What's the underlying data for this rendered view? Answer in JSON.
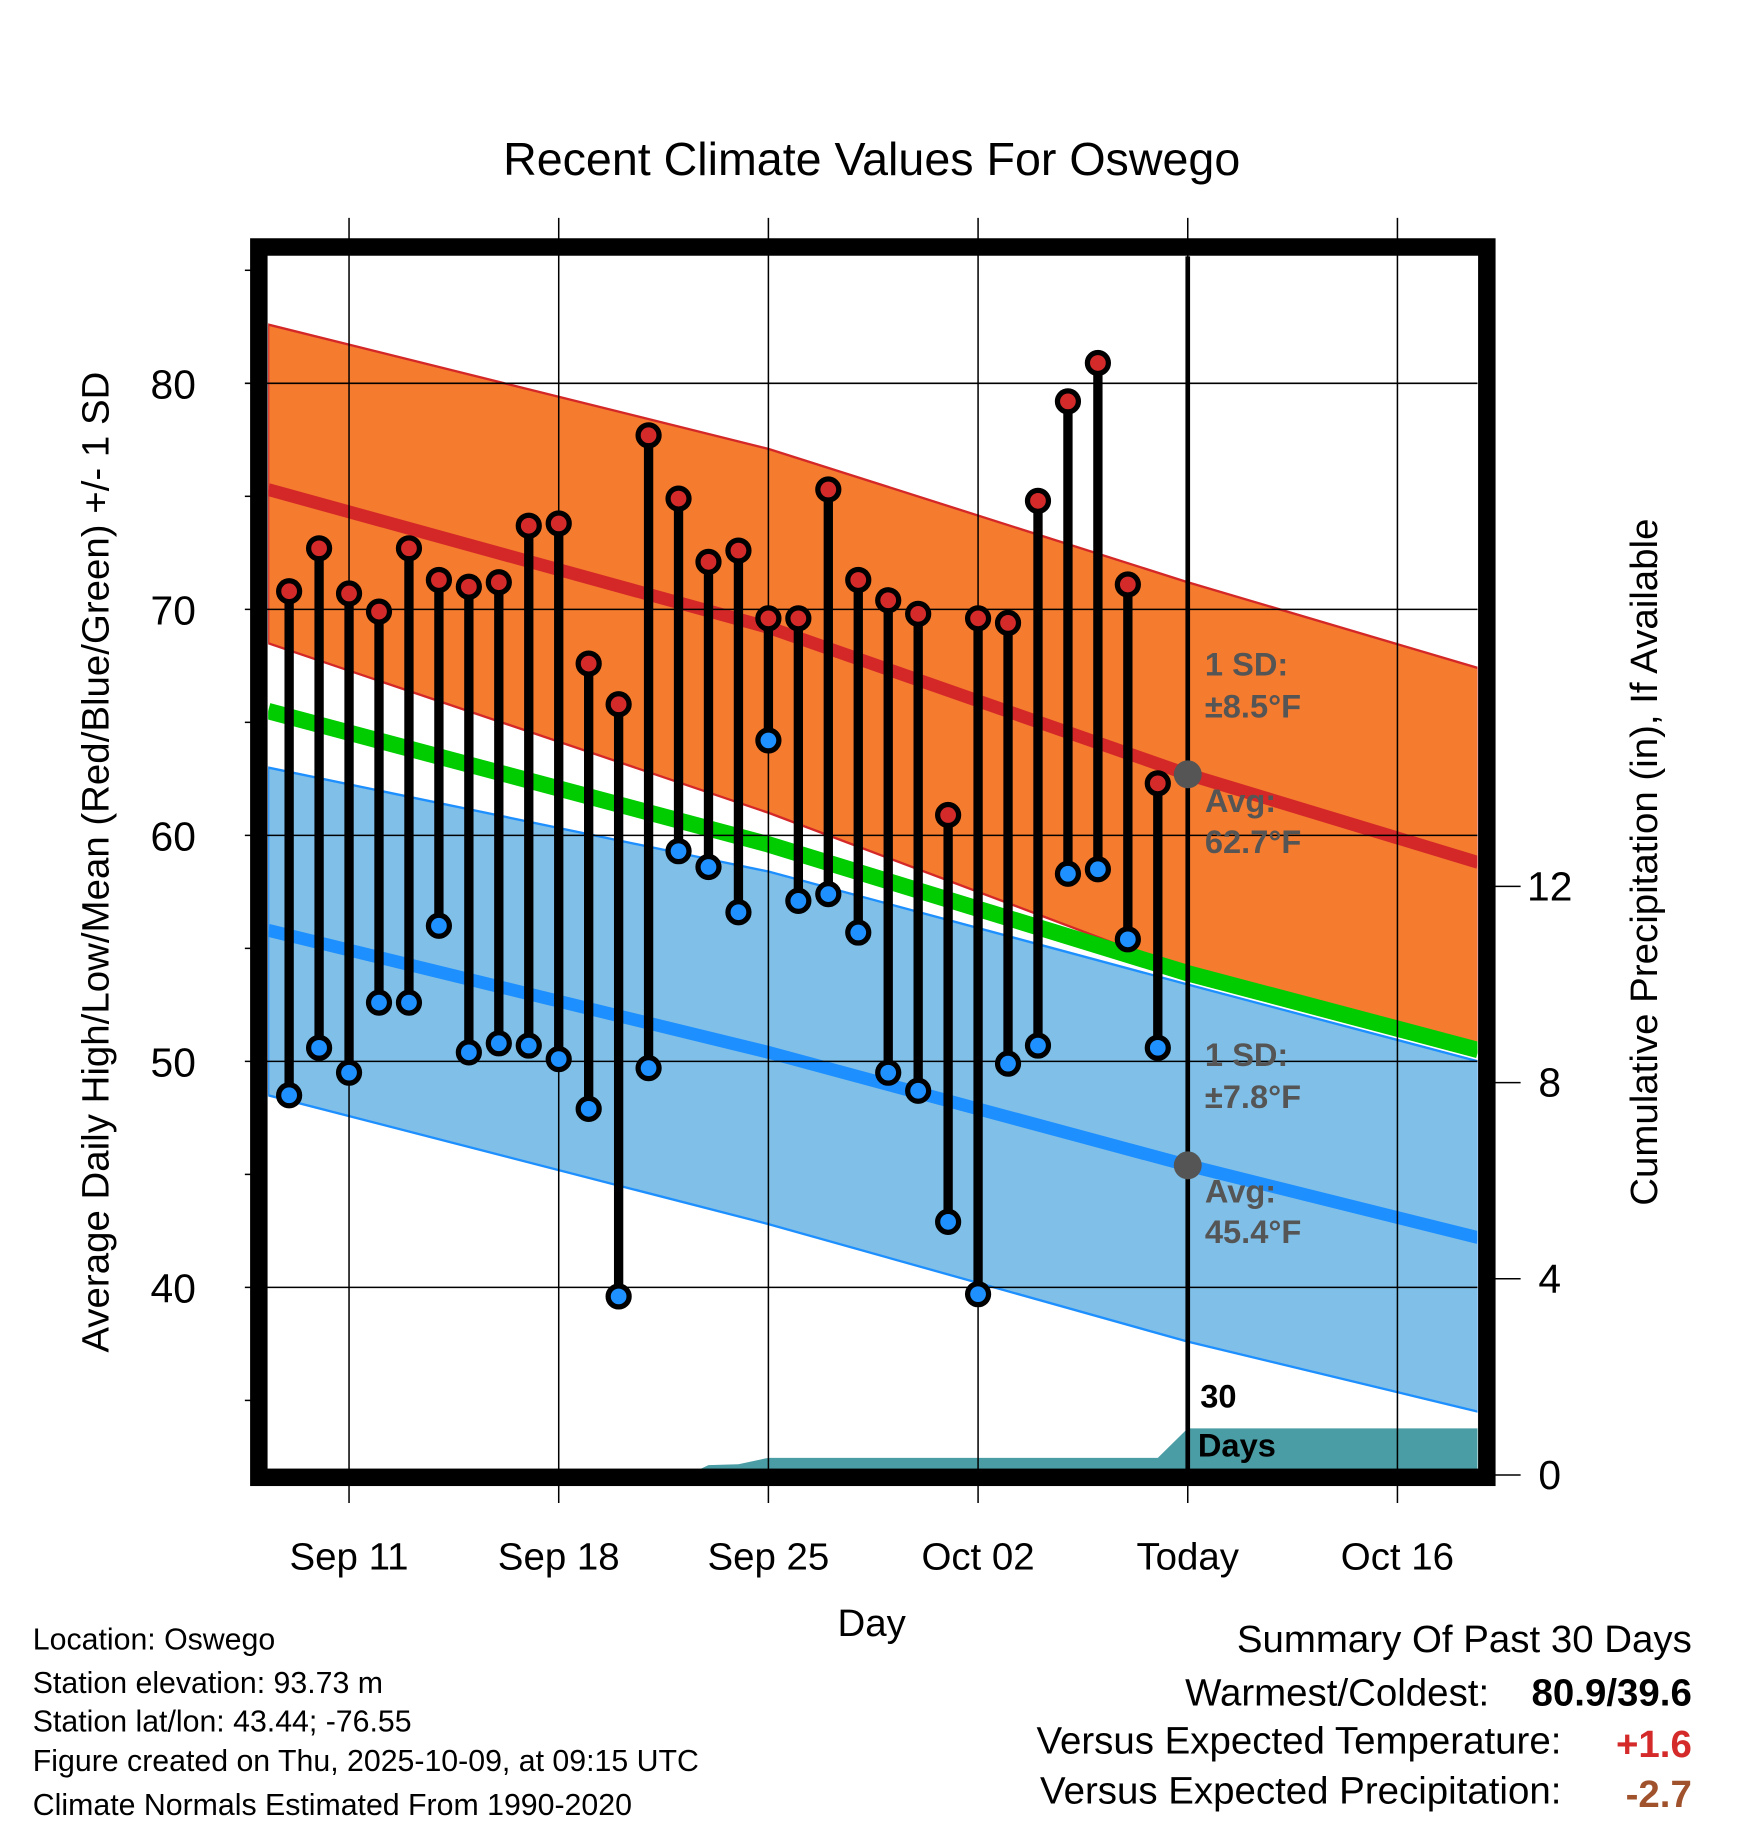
{
  "chart_data": {
    "type": "line",
    "title": "Recent Climate Values For Oswego",
    "xlabel": "Day",
    "ylabel": "Average Daily High/Low/Mean (Red/Blue/Green) +/- 1 SD",
    "y2label": "Cumulative Precipitation (in), If Available",
    "ylim": [
      32,
      85.5
    ],
    "y2lim": [
      0,
      12.7
    ],
    "xlim_days_from_first": [
      -0.7,
      39.7
    ],
    "x_ticks": [
      {
        "label": "Sep 11",
        "day": 2
      },
      {
        "label": "Sep 18",
        "day": 9
      },
      {
        "label": "Sep 25",
        "day": 16
      },
      {
        "label": "Oct 02",
        "day": 23
      },
      {
        "label": "Today",
        "day": 30
      },
      {
        "label": "Oct 16",
        "day": 37
      }
    ],
    "y_ticks": [
      40,
      50,
      60,
      70,
      80
    ],
    "y2_ticks": [
      0,
      4,
      8,
      12
    ],
    "today_day": 30,
    "dates": [
      "Sep 09",
      "Sep 10",
      "Sep 11",
      "Sep 12",
      "Sep 13",
      "Sep 14",
      "Sep 15",
      "Sep 16",
      "Sep 17",
      "Sep 18",
      "Sep 19",
      "Sep 20",
      "Sep 21",
      "Sep 22",
      "Sep 23",
      "Sep 24",
      "Sep 25",
      "Sep 26",
      "Sep 27",
      "Sep 28",
      "Sep 29",
      "Sep 30",
      "Oct 01",
      "Oct 02",
      "Oct 03",
      "Oct 04",
      "Oct 05",
      "Oct 06",
      "Oct 07",
      "Oct 08"
    ],
    "highs": [
      70.8,
      72.7,
      70.7,
      69.9,
      72.7,
      71.3,
      71.0,
      71.2,
      73.7,
      73.8,
      67.6,
      65.8,
      77.7,
      74.9,
      72.1,
      72.6,
      69.6,
      69.6,
      75.3,
      71.3,
      70.4,
      69.8,
      60.9,
      69.6,
      69.4,
      74.8,
      79.2,
      80.9,
      71.1,
      62.3
    ],
    "lows": [
      48.5,
      50.6,
      49.5,
      52.6,
      52.6,
      56.0,
      50.4,
      50.8,
      50.7,
      50.1,
      47.9,
      39.6,
      49.7,
      59.3,
      58.6,
      56.6,
      64.2,
      57.1,
      57.4,
      55.7,
      49.5,
      48.7,
      42.9,
      39.7,
      49.9,
      50.7,
      58.3,
      58.5,
      55.4,
      50.6
    ],
    "normals": {
      "days": [
        -0.7,
        16,
        30,
        39.7
      ],
      "high_upper": [
        82.6,
        77.1,
        71.2,
        67.4
      ],
      "high_mean": [
        75.3,
        69.2,
        62.7,
        58.8
      ],
      "high_lower": [
        68.5,
        61.0,
        54.0,
        50.8
      ],
      "mean": [
        65.5,
        59.6,
        53.9,
        50.5
      ],
      "low_upper": [
        63.0,
        58.4,
        53.4,
        50.0
      ],
      "low_mean": [
        55.8,
        50.4,
        45.4,
        42.2
      ],
      "low_lower": [
        48.5,
        42.8,
        37.6,
        34.5
      ]
    },
    "precip_cumulative": {
      "days": [
        -0.7,
        13.3,
        14,
        15,
        16,
        29,
        30,
        39.7
      ],
      "values": [
        0,
        0,
        0.2,
        0.22,
        0.35,
        0.35,
        0.95,
        0.95
      ]
    },
    "annotations": {
      "high_sd_label": "1 SD:",
      "high_sd_value": "±8.5°F",
      "high_avg_label": "Avg:",
      "high_avg_value": "62.7°F",
      "low_sd_label": "1 SD:",
      "low_sd_value": "±7.8°F",
      "low_avg_label": "Avg:",
      "low_avg_value": "45.4°F",
      "precip_days_num": "30",
      "precip_days_word": "Days"
    },
    "colors": {
      "high_band": "#f57b2e",
      "high_line": "#d42828",
      "mean_line": "#00cc00",
      "low_band": "#80c0e8",
      "low_line": "#1e8fff",
      "precip": "#4a9da4",
      "high_dot": "#d42a2a",
      "low_dot": "#1e90ff"
    }
  },
  "footer": {
    "location": "Location: Oswego",
    "elevation": "Station elevation: 93.73 m",
    "latlon": "Station lat/lon: 43.44; -76.55",
    "created": "Figure created on Thu, 2025-10-09, at 09:15 UTC",
    "normals": "Climate Normals Estimated From 1990-2020"
  },
  "summary": {
    "title": "Summary Of Past 30 Days",
    "warm_cold_label": "Warmest/Coldest:",
    "warm_cold_value": "80.9/39.6",
    "temp_label": "Versus Expected Temperature:",
    "temp_value": "+1.6",
    "precip_label": "Versus Expected Precipitation:",
    "precip_value": "-2.7",
    "temp_color": "#d42a2a",
    "precip_color": "#a0522d"
  }
}
